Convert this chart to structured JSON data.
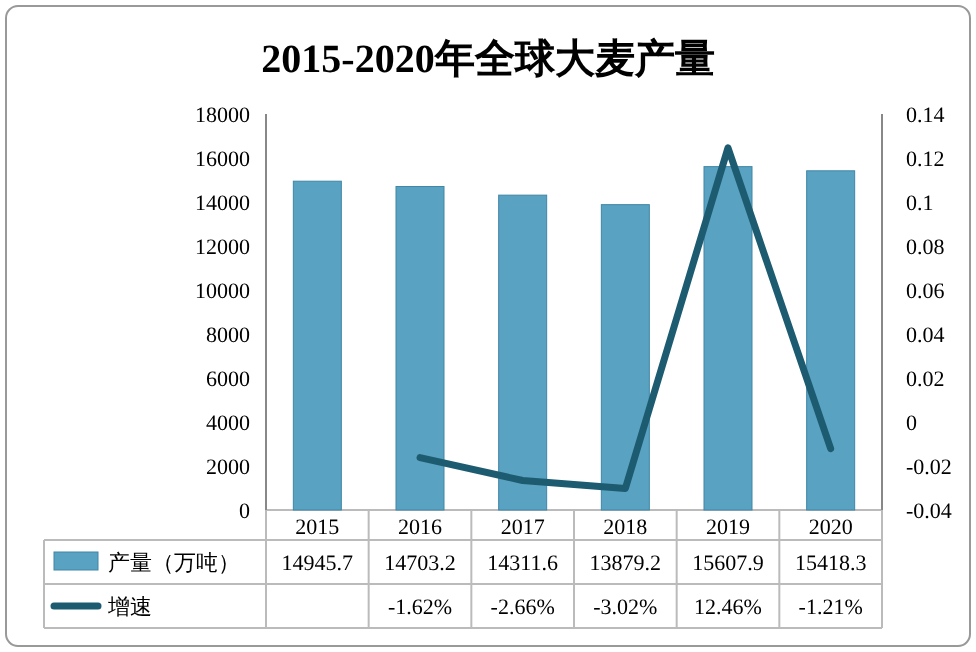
{
  "chart_data": {
    "type": "bar",
    "title": "2015-2020年全球大麦产量",
    "categories": [
      "2015",
      "2016",
      "2017",
      "2018",
      "2019",
      "2020"
    ],
    "series": [
      {
        "name": "产量（万吨）",
        "color": "#5aa2c2",
        "values": [
          14945.7,
          14703.2,
          14311.6,
          13879.2,
          15607.9,
          15418.3
        ],
        "value_labels": [
          "14945.7",
          "14703.2",
          "14311.6",
          "13879.2",
          "15607.9",
          "15418.3"
        ]
      },
      {
        "name": "增速",
        "type": "line",
        "axis": "y2",
        "color": "#1d5c70",
        "values": [
          null,
          -0.0162,
          -0.0266,
          -0.0302,
          0.1246,
          -0.0121
        ],
        "value_labels": [
          null,
          "-1.62%",
          "-2.66%",
          "-3.02%",
          "12.46%",
          "-1.21%"
        ]
      }
    ],
    "ylim": [
      0,
      18000
    ],
    "yticks": [
      0,
      2000,
      4000,
      6000,
      8000,
      10000,
      12000,
      14000,
      16000,
      18000
    ],
    "y2lim": [
      -0.04,
      0.14
    ],
    "y2ticks": [
      -0.04,
      -0.02,
      0,
      0.02,
      0.04,
      0.06,
      0.08,
      0.1,
      0.12,
      0.14
    ],
    "grid": false,
    "legend": "bottom",
    "line_style": "solid",
    "marker": "none"
  }
}
